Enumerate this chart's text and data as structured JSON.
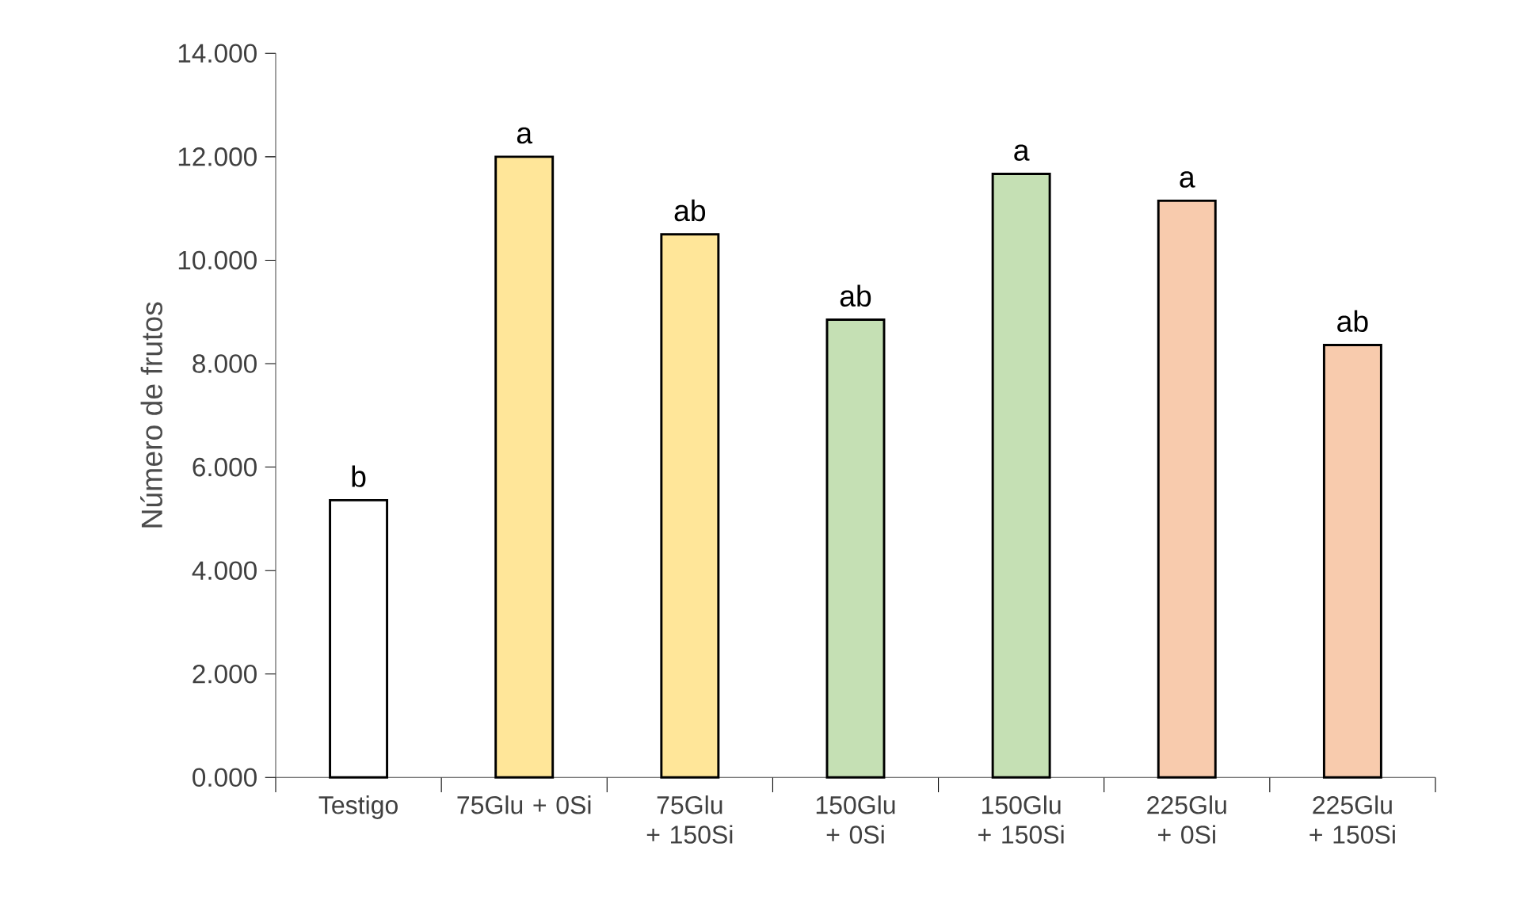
{
  "chart_data": {
    "type": "bar",
    "ylabel": "Número de frutos",
    "categories": [
      "Testigo",
      "75Glu + 0Si",
      "75Glu + 150Si",
      "150Glu + 0Si",
      "150Glu + 150Si",
      "225Glu + 0Si",
      "225Glu + 150Si"
    ],
    "values": [
      5.36,
      12.0,
      10.5,
      8.85,
      11.67,
      11.15,
      8.36
    ],
    "colors": [
      "#ffffff",
      "#ffe699",
      "#ffe699",
      "#c5e0b4",
      "#c5e0b4",
      "#f8cbad",
      "#f8cbad"
    ],
    "ylim": [
      0,
      14
    ],
    "yticks": [
      {
        "value": 0,
        "label": "0.000"
      },
      {
        "value": 2,
        "label": "2.000"
      },
      {
        "value": 4,
        "label": "4.000"
      },
      {
        "value": 6,
        "label": "6.000"
      },
      {
        "value": 8,
        "label": "8.000"
      },
      {
        "value": 10,
        "label": "10.000"
      },
      {
        "value": 12,
        "label": "12.000"
      },
      {
        "value": 14,
        "label": "14.000"
      }
    ],
    "annotations": [
      {
        "text": "b",
        "x": "Testigo",
        "y": 5.36
      },
      {
        "text": "a",
        "x": "75Glu + 0Si",
        "y": 12.0
      },
      {
        "text": "ab",
        "x": "75Glu + 150Si",
        "y": 10.5
      },
      {
        "text": "ab",
        "x": "150Glu + 0Si",
        "y": 8.85
      },
      {
        "text": "a",
        "x": "150Glu + 150Si",
        "y": 11.67
      },
      {
        "text": "a",
        "x": "225Glu + 0Si",
        "y": 11.15
      },
      {
        "text": "ab",
        "x": "225Glu + 150Si",
        "y": 8.36
      }
    ],
    "grid": false
  }
}
